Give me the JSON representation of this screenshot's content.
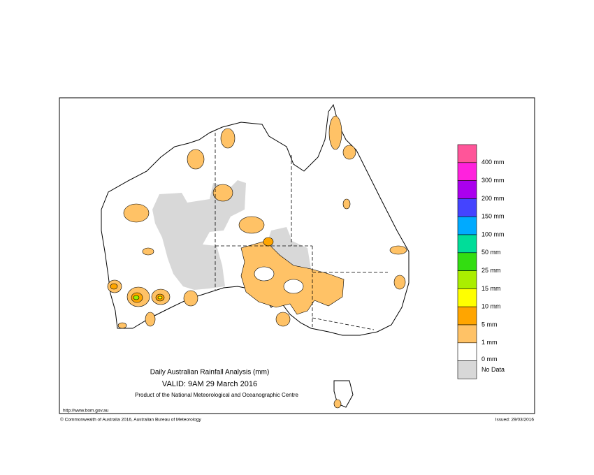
{
  "map": {
    "title": "Daily Australian Rainfall Analysis (mm)",
    "valid": "VALID: 9AM 29 March 2016",
    "product": "Product of the National Meteorological and Oceanographic Centre",
    "url": "http://www.bom.gov.au",
    "copyright": "© Commonwealth of Australia 2016, Australian Bureau of Meteorology",
    "issued": "Issued: 29/03/2016"
  },
  "legend": {
    "items": [
      {
        "label": "400 mm",
        "color": "#ff5599"
      },
      {
        "label": "300 mm",
        "color": "#ff22dd"
      },
      {
        "label": "200 mm",
        "color": "#aa00ee"
      },
      {
        "label": "150 mm",
        "color": "#4444ff"
      },
      {
        "label": "100 mm",
        "color": "#00aaff"
      },
      {
        "label": "50 mm",
        "color": "#00dd99"
      },
      {
        "label": "25 mm",
        "color": "#33dd11"
      },
      {
        "label": "15 mm",
        "color": "#aaee00"
      },
      {
        "label": "10 mm",
        "color": "#ffff00"
      },
      {
        "label": "5 mm",
        "color": "#ffa500"
      },
      {
        "label": "1 mm",
        "color": "#ffc266"
      },
      {
        "label": "0 mm",
        "color": "#ffffff"
      },
      {
        "label": "No Data",
        "color": "#d8d8d8"
      }
    ]
  }
}
